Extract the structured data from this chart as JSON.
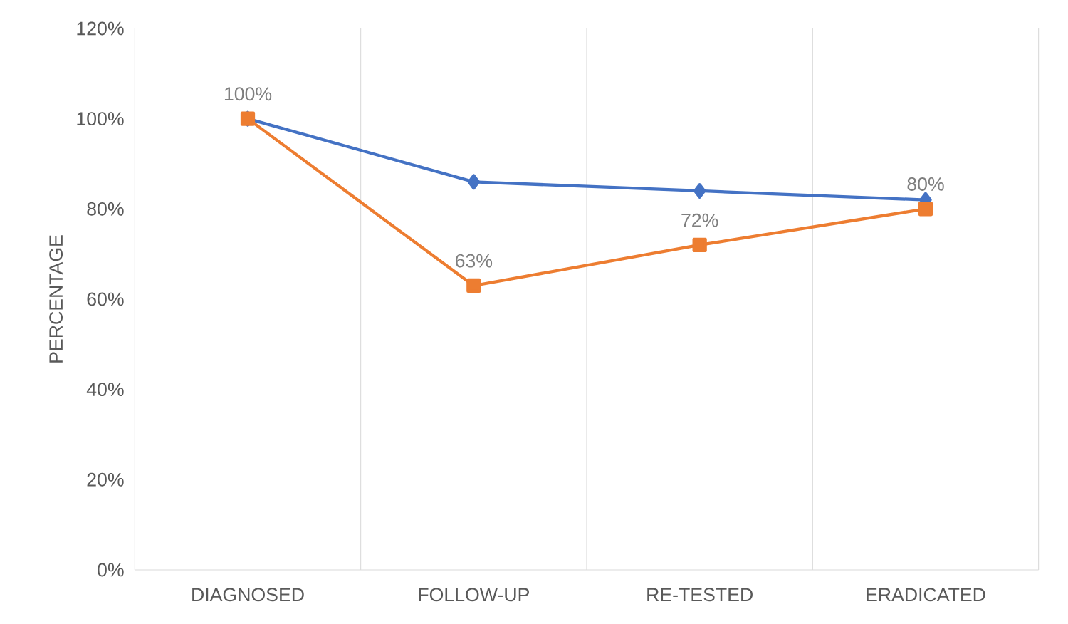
{
  "chart_data": {
    "type": "line",
    "ylabel": "PERCENTAGE",
    "categories": [
      "DIAGNOSED",
      "FOLLOW-UP",
      "RE-TESTED",
      "ERADICATED"
    ],
    "series": [
      {
        "color": "#4472c4",
        "marker": "diamond",
        "values": [
          100,
          86,
          84,
          82
        ]
      },
      {
        "color": "#ed7d31",
        "marker": "square",
        "values": [
          100,
          63,
          72,
          80
        ],
        "value_labels": [
          "100%",
          "63%",
          "72%",
          "80%"
        ]
      }
    ],
    "ylim": [
      0,
      120
    ],
    "yticks": [
      {
        "value": 0,
        "label": "0%"
      },
      {
        "value": 20,
        "label": "20%"
      },
      {
        "value": 40,
        "label": "40%"
      },
      {
        "value": 60,
        "label": "60%"
      },
      {
        "value": 80,
        "label": "80%"
      },
      {
        "value": 100,
        "label": "100%"
      },
      {
        "value": 120,
        "label": "120%"
      }
    ],
    "grid": "x",
    "line_style": "solid"
  }
}
